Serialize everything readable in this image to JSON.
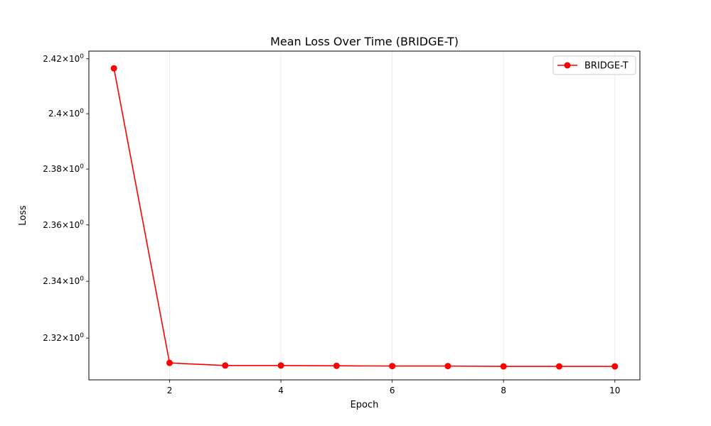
{
  "chart_data": {
    "type": "line",
    "title": "Mean Loss Over Time (BRIDGE-T)",
    "xlabel": "Epoch",
    "ylabel": "Loss",
    "x": [
      1,
      2,
      3,
      4,
      5,
      6,
      7,
      8,
      9,
      10
    ],
    "series": [
      {
        "name": "BRIDGE-T",
        "color": "#ff0000",
        "marker": "circle",
        "values": [
          2.4165,
          2.3113,
          2.3104,
          2.3104,
          2.3103,
          2.3102,
          2.3102,
          2.3101,
          2.3101,
          2.3101
        ]
      }
    ],
    "xlim": [
      0.55,
      10.45
    ],
    "ylim": [
      2.3054,
      2.4228
    ],
    "xticks": [
      2,
      4,
      6,
      8,
      10
    ],
    "yticks": [
      {
        "value": 2.32,
        "mantissa": "2.32",
        "base": "10",
        "exp": "0"
      },
      {
        "value": 2.34,
        "mantissa": "2.34",
        "base": "10",
        "exp": "0"
      },
      {
        "value": 2.36,
        "mantissa": "2.36",
        "base": "10",
        "exp": "0"
      },
      {
        "value": 2.38,
        "mantissa": "2.38",
        "base": "10",
        "exp": "0"
      },
      {
        "value": 2.4,
        "mantissa": "2.4",
        "base": "10",
        "exp": "0"
      },
      {
        "value": 2.42,
        "mantissa": "2.42",
        "base": "10",
        "exp": "0"
      }
    ],
    "yscale": "log",
    "grid": "x",
    "legend_position": "top-right"
  }
}
